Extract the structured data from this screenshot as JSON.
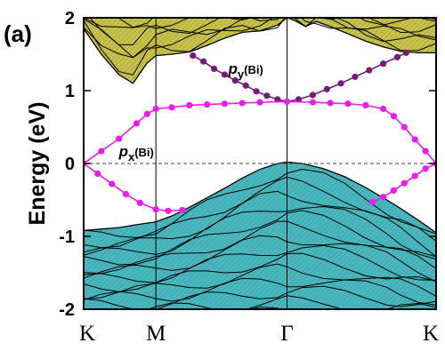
{
  "chart_data": {
    "type": "line",
    "panel_label": "(a)",
    "ylabel": "Energy (eV)",
    "ylim": [
      -2,
      2
    ],
    "y_ticks": [
      {
        "value": 2,
        "label": "2"
      },
      {
        "value": 1,
        "label": "1"
      },
      {
        "value": 0,
        "label": "0"
      },
      {
        "value": -1,
        "label": "-1"
      },
      {
        "value": -2,
        "label": "-2"
      }
    ],
    "x_ticks": [
      {
        "pos": 0.0,
        "label": "K"
      },
      {
        "pos": 0.205,
        "label": "M"
      },
      {
        "pos": 0.577,
        "label": "Γ"
      },
      {
        "pos": 1.0,
        "label": "K"
      }
    ],
    "fermi_level": 0,
    "colors": {
      "conduction_fill": "#c8c246",
      "valence_fill": "#46b9c0",
      "band_line": "#000000",
      "px_series": "#ee1bee",
      "py_series": "#7a1a78"
    },
    "annotations": [
      {
        "id": "py",
        "main": "p",
        "sub": "y",
        "suffix": "(Bi)",
        "x": 0.46,
        "y": 1.23
      },
      {
        "id": "px",
        "main": "p",
        "sub": "x",
        "suffix": "(Bi)",
        "x": 0.1,
        "y": 0.1
      }
    ],
    "series": [
      {
        "id": "py",
        "color": "#7a1a78",
        "points": [
          [
            0.31,
            1.48
          ],
          [
            0.34,
            1.4
          ],
          [
            0.37,
            1.3
          ],
          [
            0.4,
            1.22
          ],
          [
            0.43,
            1.14
          ],
          [
            0.46,
            1.07
          ],
          [
            0.49,
            0.99
          ],
          [
            0.52,
            0.93
          ],
          [
            0.55,
            0.88
          ],
          [
            0.577,
            0.85
          ],
          [
            0.61,
            0.88
          ],
          [
            0.65,
            0.94
          ],
          [
            0.69,
            1.02
          ],
          [
            0.73,
            1.1
          ],
          [
            0.77,
            1.19
          ],
          [
            0.81,
            1.28
          ],
          [
            0.85,
            1.37
          ],
          [
            0.89,
            1.46
          ],
          [
            0.915,
            1.52
          ]
        ]
      },
      {
        "id": "px_upper",
        "color": "#ee1bee",
        "points": [
          [
            0.0,
            0.0
          ],
          [
            0.05,
            0.17
          ],
          [
            0.1,
            0.34
          ],
          [
            0.15,
            0.55
          ],
          [
            0.18,
            0.68
          ],
          [
            0.205,
            0.75
          ],
          [
            0.25,
            0.77
          ],
          [
            0.3,
            0.8
          ],
          [
            0.35,
            0.81
          ],
          [
            0.4,
            0.82
          ],
          [
            0.45,
            0.83
          ],
          [
            0.5,
            0.84
          ],
          [
            0.577,
            0.85
          ],
          [
            0.65,
            0.84
          ],
          [
            0.7,
            0.83
          ],
          [
            0.75,
            0.82
          ],
          [
            0.8,
            0.8
          ],
          [
            0.85,
            0.75
          ],
          [
            0.88,
            0.65
          ],
          [
            0.91,
            0.5
          ],
          [
            0.94,
            0.33
          ],
          [
            0.97,
            0.17
          ],
          [
            1.0,
            0.0
          ]
        ]
      },
      {
        "id": "px_lower",
        "color": "#ee1bee",
        "points": [
          [
            0.0,
            0.0
          ],
          [
            0.04,
            -0.14
          ],
          [
            0.08,
            -0.28
          ],
          [
            0.12,
            -0.42
          ],
          [
            0.16,
            -0.54
          ],
          [
            0.205,
            -0.63
          ],
          [
            0.24,
            -0.65
          ],
          [
            0.28,
            -0.64
          ]
        ]
      },
      {
        "id": "px_right_lower",
        "color": "#ee1bee",
        "points": [
          [
            1.0,
            0.0
          ],
          [
            0.97,
            -0.07
          ],
          [
            0.94,
            -0.17
          ],
          [
            0.91,
            -0.27
          ],
          [
            0.88,
            -0.37
          ],
          [
            0.85,
            -0.46
          ],
          [
            0.82,
            -0.53
          ]
        ]
      }
    ],
    "conduction_edge": [
      [
        0.0,
        1.85
      ],
      [
        0.05,
        1.5
      ],
      [
        0.1,
        1.22
      ],
      [
        0.14,
        1.1
      ],
      [
        0.18,
        1.38
      ],
      [
        0.205,
        1.48
      ],
      [
        0.25,
        1.5
      ],
      [
        0.3,
        1.53
      ],
      [
        0.35,
        1.62
      ],
      [
        0.4,
        1.72
      ],
      [
        0.45,
        1.8
      ],
      [
        0.5,
        1.82
      ],
      [
        0.55,
        1.9
      ],
      [
        0.577,
        2.0
      ],
      [
        0.6,
        1.96
      ],
      [
        0.63,
        1.88
      ],
      [
        0.66,
        1.95
      ],
      [
        0.7,
        1.88
      ],
      [
        0.75,
        1.78
      ],
      [
        0.8,
        1.68
      ],
      [
        0.85,
        1.6
      ],
      [
        0.9,
        1.54
      ],
      [
        0.95,
        1.52
      ],
      [
        1.0,
        1.52
      ]
    ],
    "valence_edge": [
      [
        0.0,
        -0.92
      ],
      [
        0.05,
        -0.9
      ],
      [
        0.1,
        -0.88
      ],
      [
        0.15,
        -0.84
      ],
      [
        0.205,
        -0.8
      ],
      [
        0.25,
        -0.72
      ],
      [
        0.3,
        -0.6
      ],
      [
        0.35,
        -0.47
      ],
      [
        0.4,
        -0.34
      ],
      [
        0.45,
        -0.2
      ],
      [
        0.5,
        -0.08
      ],
      [
        0.55,
        0.0
      ],
      [
        0.577,
        0.02
      ],
      [
        0.62,
        0.0
      ],
      [
        0.68,
        -0.07
      ],
      [
        0.74,
        -0.18
      ],
      [
        0.8,
        -0.33
      ],
      [
        0.86,
        -0.5
      ],
      [
        0.9,
        -0.62
      ],
      [
        0.95,
        -0.78
      ],
      [
        1.0,
        -0.95
      ]
    ]
  }
}
